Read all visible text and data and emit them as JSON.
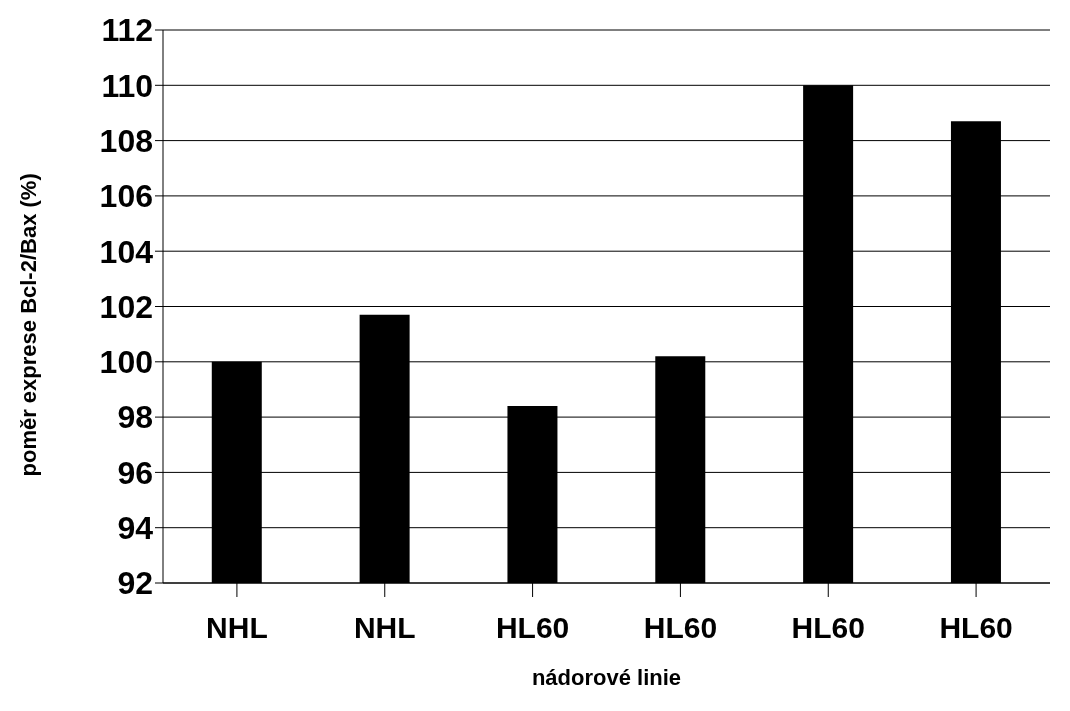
{
  "chart_data": {
    "type": "bar",
    "xlabel": "nádorové linie",
    "ylabel": "poměr exprese Bcl-2/Bax (%)",
    "categories": [
      "NHL",
      "NHL",
      "HL60",
      "HL60",
      "HL60",
      "HL60"
    ],
    "values": [
      100.0,
      101.7,
      98.4,
      100.2,
      110.0,
      108.7
    ],
    "color": "#000000",
    "ylim": [
      92,
      112
    ],
    "yticks": [
      92,
      94,
      96,
      98,
      100,
      102,
      104,
      106,
      108,
      110,
      112
    ],
    "grid": "y"
  }
}
